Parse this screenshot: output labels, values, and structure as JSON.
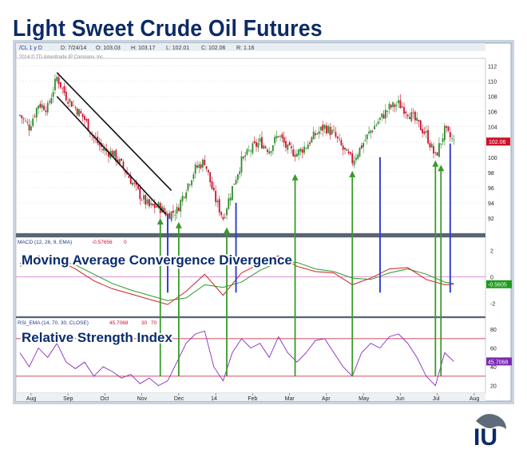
{
  "page_title": "Light Sweet Crude Oil Futures",
  "chart_data": {
    "type": "candlestick",
    "symbol_label": "/CL 1 y D",
    "copyright": "2014 © TD Ameritrade IP Company, Inc.",
    "ohlc_header": [
      {
        "label": "D: 7/24/14"
      },
      {
        "label": "O: 103.03"
      },
      {
        "label": "H: 103.17"
      },
      {
        "label": "L: 102.01"
      },
      {
        "label": "C: 102.06"
      },
      {
        "label": "R: 1.16"
      }
    ],
    "last_price": "102.06",
    "x_ticks": [
      "Aug",
      "Sep",
      "Oct",
      "Nov",
      "Dec",
      "14",
      "Feb",
      "Mar",
      "Apr",
      "May",
      "Jun",
      "Jul",
      "Aug"
    ],
    "price": {
      "y_ticks": [
        "112",
        "110",
        "108",
        "106",
        "104",
        "102",
        "100",
        "98",
        "96",
        "94",
        "92"
      ],
      "ylim": [
        90,
        113
      ],
      "close_path": [
        [
          0.0,
          105.5
        ],
        [
          0.5,
          104.0
        ],
        [
          1.0,
          107.0
        ],
        [
          1.5,
          106.5
        ],
        [
          2.0,
          110.5
        ],
        [
          2.5,
          108.0
        ],
        [
          3.0,
          106.5
        ],
        [
          3.5,
          105.0
        ],
        [
          4.0,
          102.5
        ],
        [
          4.5,
          101.0
        ],
        [
          5.0,
          100.5
        ],
        [
          5.5,
          99.0
        ],
        [
          6.0,
          97.0
        ],
        [
          6.5,
          95.0
        ],
        [
          7.0,
          93.5
        ],
        [
          7.5,
          93.5
        ],
        [
          8.0,
          92.5
        ],
        [
          8.5,
          93.0
        ],
        [
          9.0,
          96.0
        ],
        [
          9.5,
          98.5
        ],
        [
          10.0,
          99.5
        ],
        [
          10.5,
          95.0
        ],
        [
          11.0,
          92.0
        ],
        [
          11.5,
          96.0
        ],
        [
          12.0,
          99.5
        ],
        [
          12.5,
          101.0
        ],
        [
          13.0,
          102.0
        ],
        [
          13.5,
          101.0
        ],
        [
          14.0,
          103.0
        ],
        [
          14.5,
          101.0
        ],
        [
          15.0,
          100.5
        ],
        [
          15.5,
          101.5
        ],
        [
          16.0,
          103.0
        ],
        [
          16.5,
          104.0
        ],
        [
          17.0,
          103.0
        ],
        [
          17.5,
          101.0
        ],
        [
          18.0,
          99.5
        ],
        [
          18.5,
          101.5
        ],
        [
          19.0,
          103.5
        ],
        [
          19.5,
          105.0
        ],
        [
          20.0,
          106.5
        ],
        [
          20.5,
          107.0
        ],
        [
          21.0,
          106.0
        ],
        [
          21.5,
          104.5
        ],
        [
          22.0,
          103.0
        ],
        [
          22.5,
          100.0
        ],
        [
          23.0,
          103.5
        ],
        [
          23.5,
          102.0
        ]
      ]
    },
    "channel": {
      "upper": [
        [
          2.0,
          110.5
        ],
        [
          8.2,
          95.0
        ]
      ],
      "lower": [
        [
          2.0,
          108.0
        ],
        [
          7.9,
          92.5
        ]
      ]
    },
    "macd": {
      "label": "MACD (12, 26, 9, EMA)",
      "value_label": "-0.57656",
      "flag_label": "0",
      "last_label": "-0.5605",
      "y_ticks": [
        "2",
        "0",
        "-2"
      ],
      "ylim": [
        -3,
        3
      ],
      "zero_line": 0,
      "macd_path": [
        [
          0.0,
          1.0
        ],
        [
          1.0,
          1.6
        ],
        [
          2.0,
          1.3
        ],
        [
          3.0,
          0.6
        ],
        [
          4.0,
          -0.3
        ],
        [
          5.0,
          -0.9
        ],
        [
          6.0,
          -1.3
        ],
        [
          7.0,
          -1.7
        ],
        [
          8.0,
          -2.1
        ],
        [
          9.0,
          -1.1
        ],
        [
          10.0,
          0.2
        ],
        [
          11.0,
          -1.4
        ],
        [
          12.0,
          0.3
        ],
        [
          13.0,
          1.0
        ],
        [
          14.0,
          1.6
        ],
        [
          15.0,
          0.8
        ],
        [
          16.0,
          0.4
        ],
        [
          17.0,
          0.3
        ],
        [
          18.0,
          -0.6
        ],
        [
          19.0,
          -0.1
        ],
        [
          20.0,
          0.6
        ],
        [
          21.0,
          0.7
        ],
        [
          22.0,
          -0.2
        ],
        [
          23.0,
          -0.6
        ],
        [
          23.5,
          -0.56
        ]
      ],
      "signal_path": [
        [
          0.0,
          0.8
        ],
        [
          1.0,
          1.2
        ],
        [
          2.0,
          1.3
        ],
        [
          3.0,
          0.9
        ],
        [
          4.0,
          0.2
        ],
        [
          5.0,
          -0.5
        ],
        [
          6.0,
          -1.0
        ],
        [
          7.0,
          -1.4
        ],
        [
          8.0,
          -1.8
        ],
        [
          9.0,
          -1.6
        ],
        [
          10.0,
          -0.6
        ],
        [
          11.0,
          -0.8
        ],
        [
          12.0,
          -0.4
        ],
        [
          13.0,
          0.5
        ],
        [
          14.0,
          1.1
        ],
        [
          15.0,
          1.1
        ],
        [
          16.0,
          0.6
        ],
        [
          17.0,
          0.4
        ],
        [
          18.0,
          -0.1
        ],
        [
          19.0,
          -0.2
        ],
        [
          20.0,
          0.3
        ],
        [
          21.0,
          0.6
        ],
        [
          22.0,
          0.2
        ],
        [
          23.0,
          -0.4
        ],
        [
          23.5,
          -0.5
        ]
      ]
    },
    "rsi": {
      "label": "RSI_EMA (14, 70, 30, CLOSE)",
      "value_label": "45.7068",
      "flag_a": "30",
      "flag_b": "70",
      "last_label": "45.7068",
      "y_ticks": [
        "80",
        "60",
        "40",
        "20"
      ],
      "ylim": [
        12,
        92
      ],
      "overbought": 70,
      "oversold": 30,
      "path": [
        [
          0.0,
          55
        ],
        [
          0.5,
          40
        ],
        [
          1.0,
          60
        ],
        [
          1.5,
          50
        ],
        [
          2.0,
          65
        ],
        [
          2.5,
          45
        ],
        [
          3.0,
          38
        ],
        [
          3.5,
          45
        ],
        [
          4.0,
          30
        ],
        [
          4.5,
          40
        ],
        [
          5.0,
          35
        ],
        [
          5.5,
          28
        ],
        [
          6.0,
          32
        ],
        [
          6.5,
          22
        ],
        [
          7.0,
          28
        ],
        [
          7.5,
          20
        ],
        [
          8.0,
          25
        ],
        [
          8.5,
          45
        ],
        [
          9.0,
          65
        ],
        [
          9.5,
          75
        ],
        [
          10.0,
          78
        ],
        [
          10.5,
          40
        ],
        [
          11.0,
          25
        ],
        [
          11.5,
          55
        ],
        [
          12.0,
          70
        ],
        [
          12.5,
          60
        ],
        [
          13.0,
          65
        ],
        [
          13.5,
          50
        ],
        [
          14.0,
          72
        ],
        [
          14.5,
          55
        ],
        [
          15.0,
          45
        ],
        [
          15.5,
          55
        ],
        [
          16.0,
          68
        ],
        [
          16.5,
          70
        ],
        [
          17.0,
          55
        ],
        [
          17.5,
          40
        ],
        [
          18.0,
          30
        ],
        [
          18.5,
          55
        ],
        [
          19.0,
          65
        ],
        [
          19.5,
          60
        ],
        [
          20.0,
          72
        ],
        [
          20.5,
          75
        ],
        [
          21.0,
          65
        ],
        [
          21.5,
          50
        ],
        [
          22.0,
          30
        ],
        [
          22.5,
          20
        ],
        [
          23.0,
          55
        ],
        [
          23.5,
          45.7
        ]
      ]
    },
    "blue_lines": [
      {
        "x": 8.0,
        "y_top": 92.5
      },
      {
        "x": 11.7,
        "y_top": 94.0
      },
      {
        "x": 19.5,
        "y_top": 100.0
      },
      {
        "x": 23.3,
        "y_top": 101.8
      }
    ],
    "green_arrows": [
      {
        "x": 7.6,
        "y_top": 92.0
      },
      {
        "x": 8.6,
        "y_top": 91.5
      },
      {
        "x": 11.2,
        "y_top": 90.8
      },
      {
        "x": 14.9,
        "y_top": 97.8
      },
      {
        "x": 18.0,
        "y_top": 98.2
      },
      {
        "x": 22.5,
        "y_top": 99.6
      },
      {
        "x": 22.8,
        "y_top": 99.0
      }
    ],
    "overlay_labels": {
      "macd_title": "Moving Average Convergence Divergence",
      "rsi_title": "Relative Strength Index"
    },
    "logo_text": "IU"
  },
  "colors": {
    "title": "#0c2a66",
    "overlay": "#0a2d6e",
    "up_candle": "#2e8b2e",
    "down_candle": "#c8102e",
    "channel": "#111111",
    "blue_line": "#3344cc",
    "green_arrow": "#3a9a2a",
    "macd": "#cc2222",
    "signal": "#2a9a2a",
    "rsi": "#8a2bbd",
    "bands": "#c8102e",
    "badge_price": "#d0102a",
    "badge_macd": "#1e9a1e",
    "badge_rsi": "#7a2ab0",
    "frame_bg": "#c9d4e0"
  }
}
